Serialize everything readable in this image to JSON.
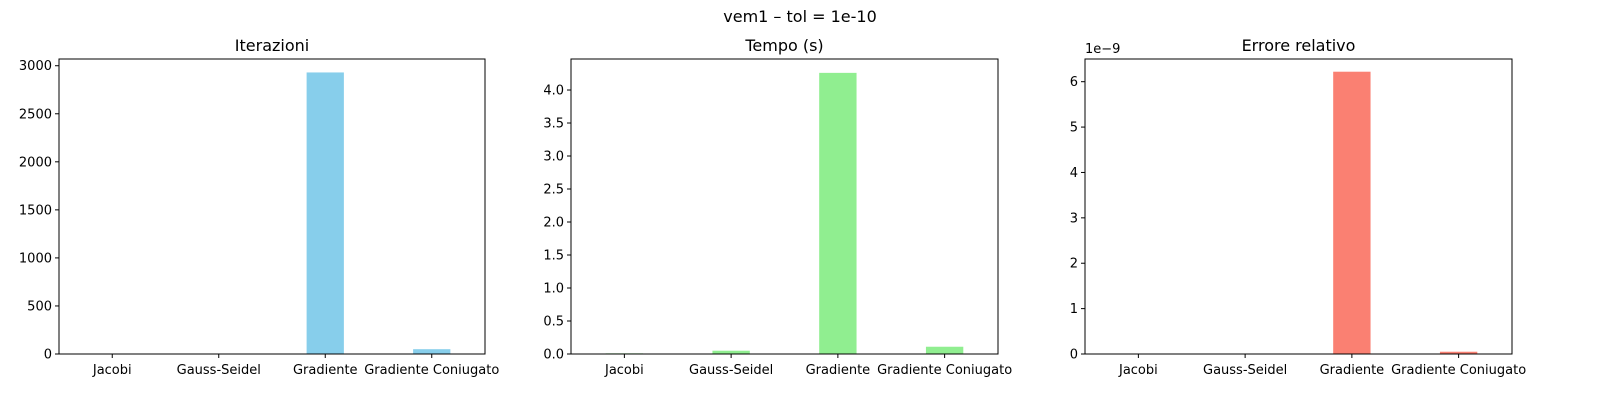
{
  "figure": {
    "title": "vem1 – tol = 1e-10"
  },
  "chart_data": [
    {
      "type": "bar",
      "title": "Iterazioni",
      "categories": [
        "Jacobi",
        "Gauss-Seidel",
        "Gradiente",
        "Gradiente Coniugato"
      ],
      "values": [
        0,
        0,
        2930,
        50
      ],
      "ylim": [
        0,
        3070
      ],
      "yticks": [
        0,
        500,
        1000,
        1500,
        2000,
        2500,
        3000
      ],
      "ytick_labels": [
        "0",
        "500",
        "1000",
        "1500",
        "2000",
        "2500",
        "3000"
      ],
      "offset_text": "",
      "color": "#87ceeb",
      "grid": false
    },
    {
      "type": "bar",
      "title": "Tempo (s)",
      "categories": [
        "Jacobi",
        "Gauss-Seidel",
        "Gradiente",
        "Gradiente Coniugato"
      ],
      "values": [
        0.01,
        0.05,
        4.26,
        0.11
      ],
      "ylim": [
        0,
        4.47
      ],
      "yticks": [
        0,
        0.5,
        1.0,
        1.5,
        2.0,
        2.5,
        3.0,
        3.5,
        4.0
      ],
      "ytick_labels": [
        "0.0",
        "0.5",
        "1.0",
        "1.5",
        "2.0",
        "2.5",
        "3.0",
        "3.5",
        "4.0"
      ],
      "offset_text": "",
      "color": "#90ee90",
      "grid": false
    },
    {
      "type": "bar",
      "title": "Errore relativo",
      "categories": [
        "Jacobi",
        "Gauss-Seidel",
        "Gradiente",
        "Gradiente Coniugato"
      ],
      "values": [
        0,
        0,
        6.22e-09,
        5e-11
      ],
      "ylim": [
        0,
        6.5e-09
      ],
      "yticks": [
        0,
        1e-09,
        2e-09,
        3e-09,
        4e-09,
        5e-09,
        6e-09
      ],
      "ytick_labels": [
        "0",
        "1",
        "2",
        "3",
        "4",
        "5",
        "6"
      ],
      "offset_text": "1e−9",
      "color": "#fa8072",
      "grid": false
    }
  ]
}
